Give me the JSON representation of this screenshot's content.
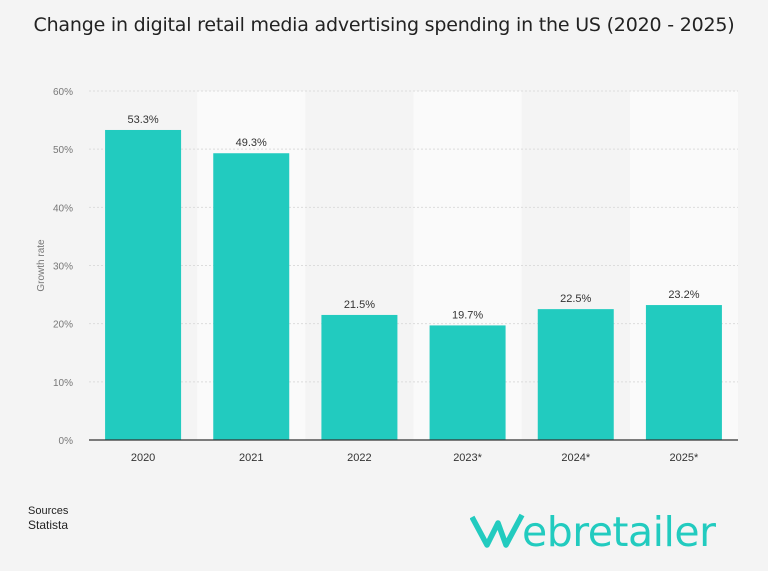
{
  "chart_data": {
    "type": "bar",
    "title": "Change in digital retail media advertising spending in the US (2020 - 2025)",
    "categories": [
      "2020",
      "2021",
      "2022",
      "2023*",
      "2024*",
      "2025*"
    ],
    "values": [
      53.3,
      49.3,
      21.5,
      19.7,
      22.5,
      23.2
    ],
    "data_labels": [
      "53.3%",
      "49.3%",
      "21.5%",
      "19.7%",
      "22.5%",
      "23.2%"
    ],
    "xlabel": "",
    "ylabel": "Growth rate",
    "ylim": [
      0,
      60
    ],
    "yticks": [
      0,
      10,
      20,
      30,
      40,
      50,
      60
    ],
    "ytick_labels": [
      "0%",
      "10%",
      "20%",
      "30%",
      "40%",
      "50%",
      "60%"
    ],
    "grid": true,
    "bar_color": "#22cbbf"
  },
  "footer": {
    "sources_label": "Sources",
    "source": "Statista"
  },
  "logo": {
    "text": "Webretailer",
    "color": "#22cbbf"
  }
}
